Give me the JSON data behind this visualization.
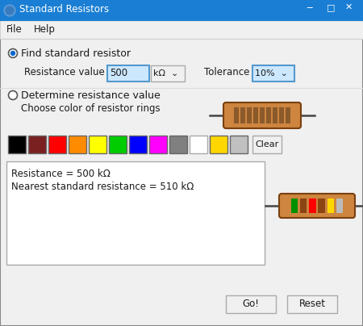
{
  "title": "Standard Resistors",
  "bg_color": "#f0f0f0",
  "titlebar_color": "#1a7fd4",
  "titlebar_text_color": "#ffffff",
  "menu_items": [
    "File",
    "Help"
  ],
  "radio1_text": "Find standard resistor",
  "radio2_text": "Determine resistance value",
  "resistance_label": "Resistance value",
  "resistance_value": "500",
  "unit_label": "kΩ",
  "tolerance_label": "Tolerance",
  "tolerance_value": "10%",
  "choose_color_text": "Choose color of resistor rings",
  "color_swatches": [
    "#000000",
    "#7b2020",
    "#ff0000",
    "#ff8c00",
    "#ffff00",
    "#00cc00",
    "#0000ff",
    "#ff00ff",
    "#808080",
    "#ffffff",
    "#ffd700",
    "#c0c0c0"
  ],
  "clear_btn": "Clear",
  "result_text1": "Resistance = 500 kΩ",
  "result_text2": "Nearest standard resistance = 510 kΩ",
  "go_btn": "Go!",
  "reset_btn": "Reset",
  "resistor1_body": "#cd853f",
  "resistor1_stripe_color": "#8b5a2b",
  "resistor2_bands": [
    "#009000",
    "#8b4513",
    "#ff0000",
    "#8b4513",
    "#ffd700",
    "#c0c0c0"
  ],
  "resistor2_body": "#cd853f",
  "input_bg": "#cce8ff",
  "input_border": "#99d1ff"
}
